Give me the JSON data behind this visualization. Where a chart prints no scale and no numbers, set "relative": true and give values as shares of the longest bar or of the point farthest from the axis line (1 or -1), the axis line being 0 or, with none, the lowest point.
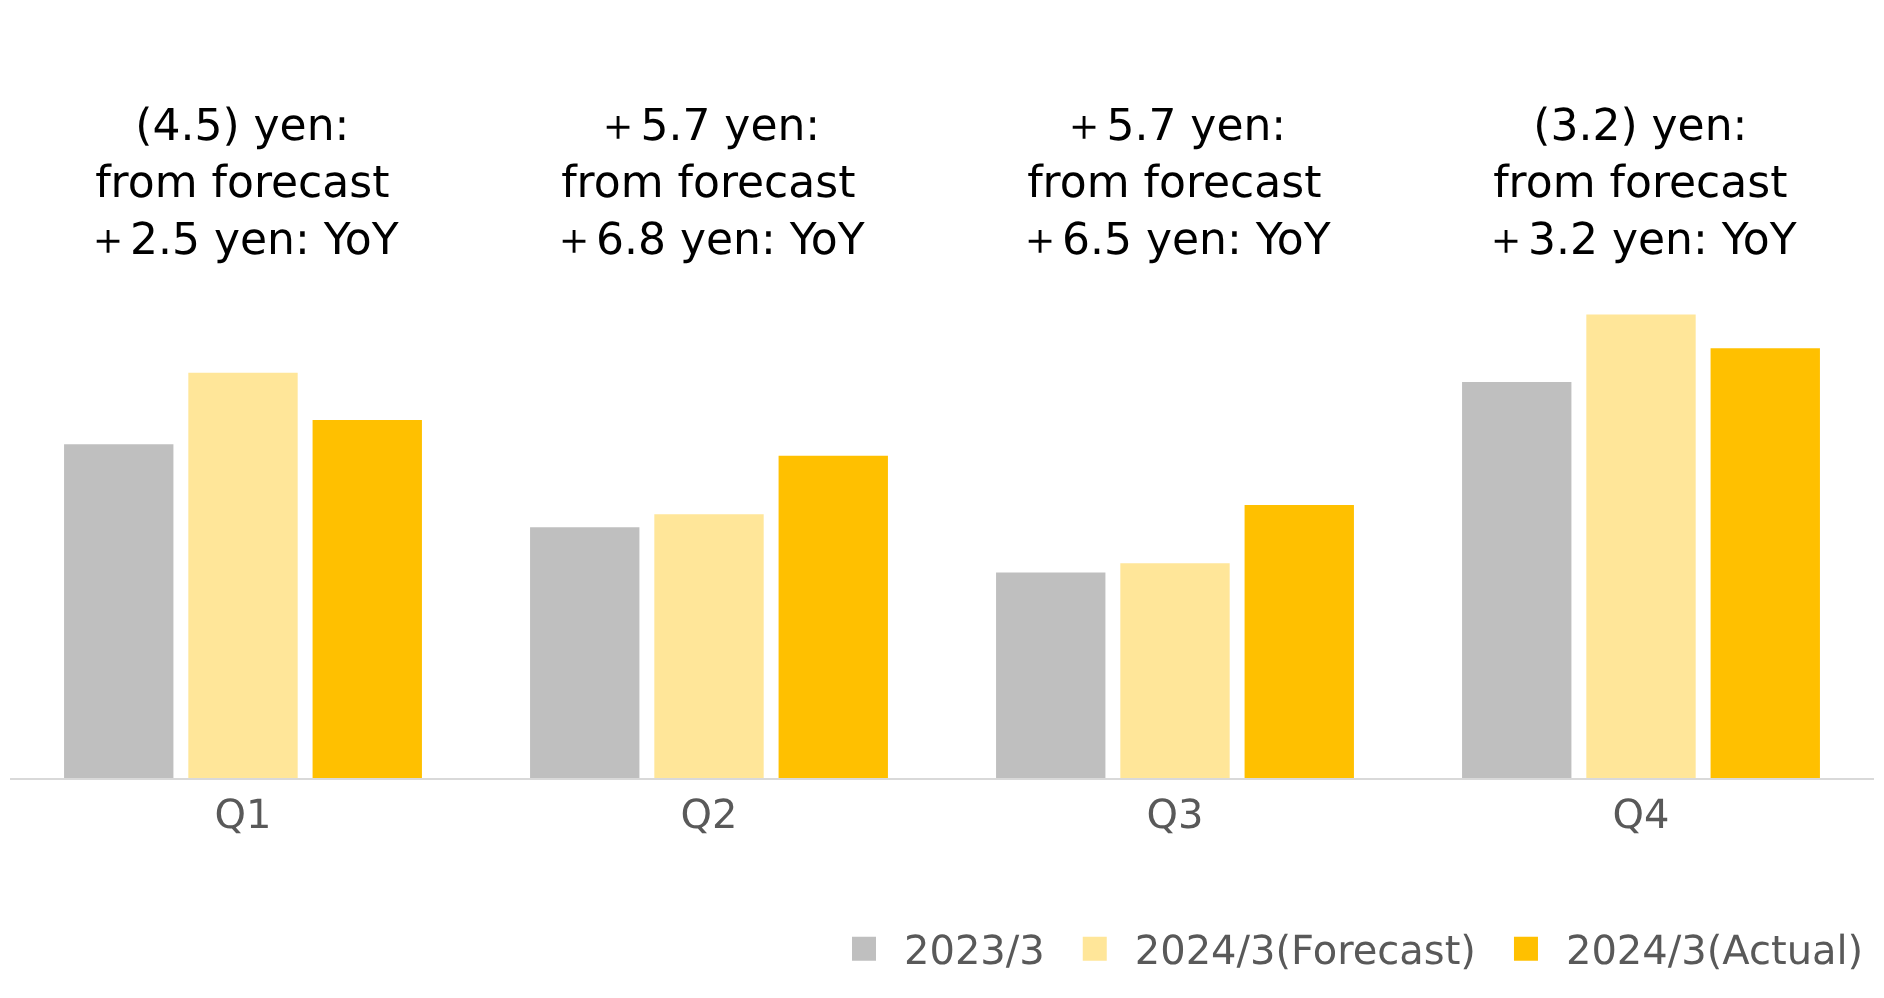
{
  "chart_data": {
    "type": "bar",
    "relative": true,
    "categories": [
      "Q1",
      "Q2",
      "Q3",
      "Q4"
    ],
    "series": [
      {
        "name": "2023/3",
        "color": "#bfbfbf",
        "values": [
          0.72,
          0.541,
          0.443,
          0.854
        ]
      },
      {
        "name": "2024/3(Forecast)",
        "color": "#ffe699",
        "values": [
          0.874,
          0.569,
          0.463,
          1
        ]
      },
      {
        "name": "2024/3(Actual)",
        "color": "#ffc000",
        "values": [
          0.772,
          0.695,
          0.589,
          0.927
        ]
      }
    ],
    "annotations": [
      "(4.5) yen:\nfrom forecast\n＋2.5 yen: YoY",
      "＋5.7 yen:\nfrom forecast\n＋6.8 yen: YoY",
      "＋5.7 yen:\nfrom forecast\n＋6.5 yen: YoY",
      "(3.2) yen:\nfrom forecast\n＋3.2 yen: YoY"
    ],
    "legend": "bottom right"
  }
}
